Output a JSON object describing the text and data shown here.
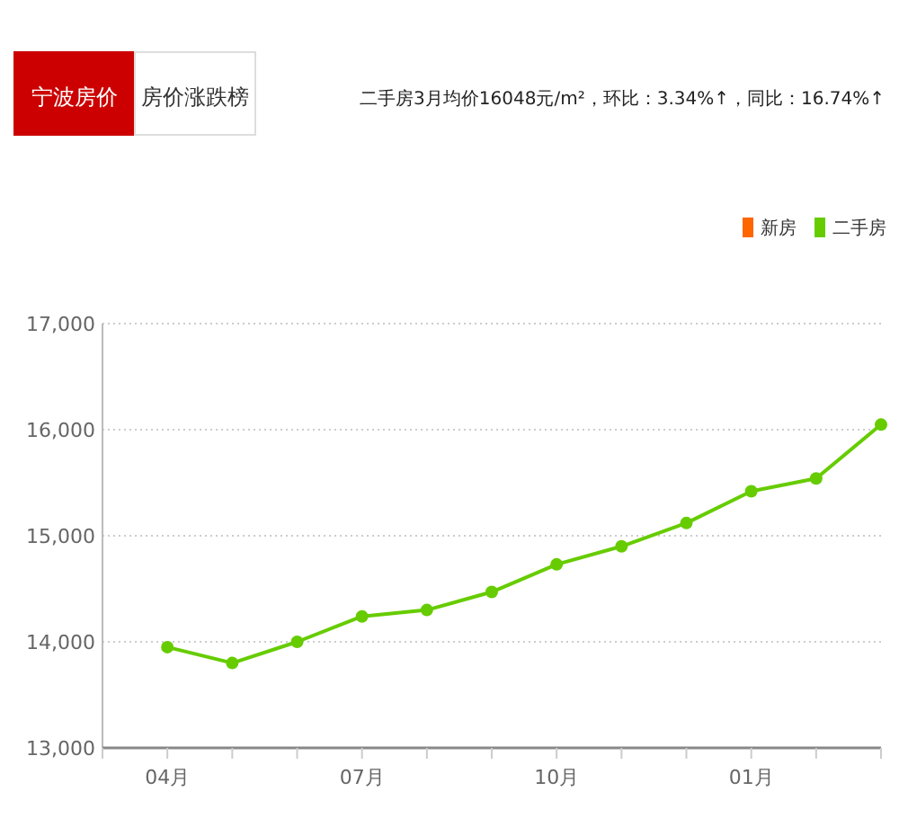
{
  "chart_data": {
    "type": "line",
    "title": "二手房3月均价16048元/m²，环比：3.34%↑，同比：16.74%↑",
    "annotations": [
      "宁波房价",
      "房价涨跌榜"
    ],
    "categories": [
      "04月",
      null,
      null,
      "07月",
      null,
      null,
      "10月",
      null,
      null,
      "01月",
      null,
      null
    ],
    "series": [
      {
        "name": "新房",
        "color": "#ff6600",
        "values": [
          null,
          null,
          null,
          null,
          null,
          null,
          null,
          null,
          null,
          null,
          null,
          null
        ]
      },
      {
        "name": "二手房",
        "color": "#66cc00",
        "values": [
          13950,
          13800,
          14000,
          14240,
          14300,
          14470,
          14730,
          14900,
          15120,
          15420,
          15540,
          16048
        ]
      }
    ],
    "ylim": [
      13000,
      17000
    ],
    "yticks": [
      {
        "value": 13000,
        "label": "13,000"
      },
      {
        "value": 14000,
        "label": "14,000"
      },
      {
        "value": 15000,
        "label": "15,000"
      },
      {
        "value": 16000,
        "label": "16,000"
      },
      {
        "value": 17000,
        "label": "17,000"
      }
    ],
    "grid": "y",
    "legend": "top right",
    "marker": "circle",
    "line_style": "solid"
  }
}
